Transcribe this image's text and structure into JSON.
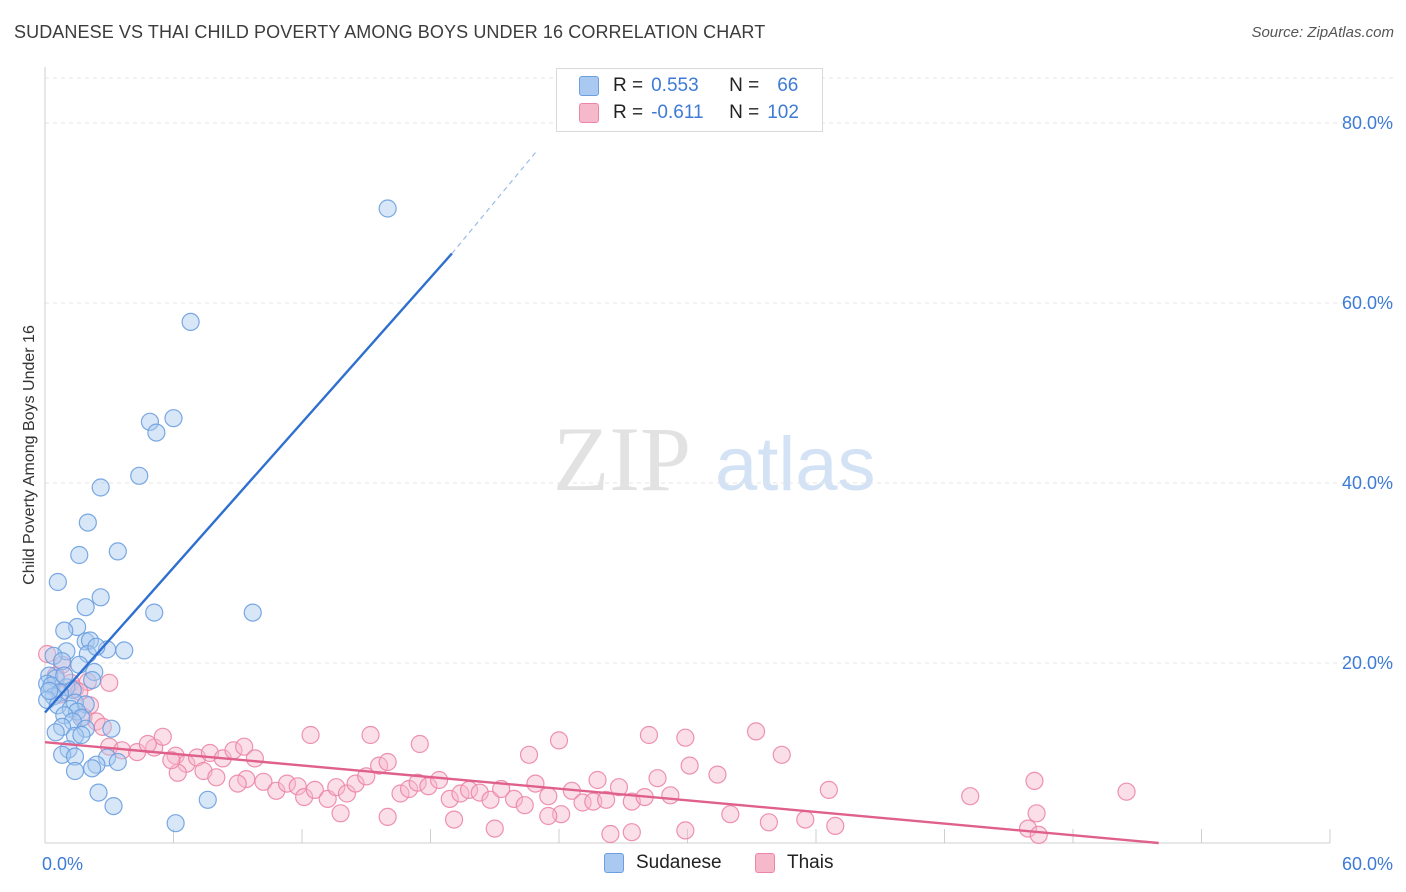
{
  "header": {
    "title": "SUDANESE VS THAI CHILD POVERTY AMONG BOYS UNDER 16 CORRELATION CHART",
    "source": "Source: ZipAtlas.com"
  },
  "watermark": {
    "zip": "ZIP",
    "atlas": "atlas"
  },
  "legend": {
    "rows": [
      {
        "r_label": "R =",
        "r_value": "0.553",
        "n_label": "N =",
        "n_value": "66",
        "color": "#a9c9f0"
      },
      {
        "r_label": "R =",
        "r_value": "-0.611",
        "n_label": "N =",
        "n_value": "102",
        "color": "#f6b8cb"
      }
    ]
  },
  "bottom_legend": {
    "sudanese": "Sudanese",
    "thais": "Thais"
  },
  "chart_data": {
    "type": "scatter",
    "ylabel": "Child Poverty Among Boys Under 16",
    "xlabel": "",
    "xlim": [
      0,
      60
    ],
    "ylim": [
      0,
      85
    ],
    "x_tick_labels": [
      "0.0%",
      "60.0%"
    ],
    "y_tick_labels": [
      "20.0%",
      "40.0%",
      "60.0%",
      "80.0%"
    ],
    "y_ticks": [
      20,
      40,
      60,
      80
    ],
    "grid": true,
    "colors": {
      "sudanese": "#6b9fe0",
      "sudanese_fill": "#a9c9f0",
      "sudanese_line": "#2e6fd0",
      "thais": "#ec86a6",
      "thais_fill": "#f6b8cb",
      "thais_line": "#e0608c",
      "axis_text": "#3d7bd6"
    },
    "series": [
      {
        "name": "Sudanese",
        "trend": {
          "x": [
            0.0,
            19.0
          ],
          "y": [
            14.5,
            65.5
          ],
          "dashed_to": [
            23.0,
            77.0
          ]
        },
        "points": [
          [
            16.0,
            70.5
          ],
          [
            6.8,
            57.9
          ],
          [
            6.0,
            47.2
          ],
          [
            4.9,
            46.8
          ],
          [
            5.2,
            45.6
          ],
          [
            4.4,
            40.8
          ],
          [
            2.6,
            39.5
          ],
          [
            2.0,
            35.6
          ],
          [
            3.4,
            32.4
          ],
          [
            1.6,
            32.0
          ],
          [
            0.6,
            29.0
          ],
          [
            2.6,
            27.3
          ],
          [
            5.1,
            25.6
          ],
          [
            9.7,
            25.6
          ],
          [
            1.9,
            26.2
          ],
          [
            1.5,
            24.0
          ],
          [
            0.9,
            23.6
          ],
          [
            1.9,
            22.4
          ],
          [
            2.1,
            22.5
          ],
          [
            1.0,
            21.3
          ],
          [
            2.0,
            21.0
          ],
          [
            2.9,
            21.5
          ],
          [
            3.7,
            21.4
          ],
          [
            0.4,
            20.8
          ],
          [
            0.8,
            20.2
          ],
          [
            1.6,
            19.8
          ],
          [
            2.3,
            19.0
          ],
          [
            0.2,
            18.6
          ],
          [
            0.5,
            18.3
          ],
          [
            2.2,
            18.1
          ],
          [
            0.1,
            17.7
          ],
          [
            0.3,
            17.5
          ],
          [
            1.0,
            17.3
          ],
          [
            1.3,
            17.0
          ],
          [
            0.7,
            16.7
          ],
          [
            0.4,
            16.3
          ],
          [
            0.1,
            15.9
          ],
          [
            1.4,
            15.6
          ],
          [
            0.6,
            15.3
          ],
          [
            1.9,
            15.4
          ],
          [
            1.2,
            14.9
          ],
          [
            1.5,
            14.6
          ],
          [
            0.9,
            14.2
          ],
          [
            1.7,
            13.9
          ],
          [
            1.3,
            13.5
          ],
          [
            0.8,
            12.9
          ],
          [
            1.9,
            12.7
          ],
          [
            3.1,
            12.7
          ],
          [
            0.5,
            12.3
          ],
          [
            1.4,
            11.9
          ],
          [
            1.7,
            12.0
          ],
          [
            1.1,
            10.4
          ],
          [
            0.8,
            9.8
          ],
          [
            1.4,
            9.6
          ],
          [
            2.9,
            9.5
          ],
          [
            3.4,
            9.0
          ],
          [
            2.4,
            8.7
          ],
          [
            2.2,
            8.3
          ],
          [
            1.4,
            8.0
          ],
          [
            2.5,
            5.6
          ],
          [
            3.2,
            4.1
          ],
          [
            7.6,
            4.8
          ],
          [
            6.1,
            2.2
          ],
          [
            0.2,
            16.9
          ],
          [
            0.9,
            18.6
          ],
          [
            2.4,
            21.8
          ]
        ]
      },
      {
        "name": "Thais",
        "trend": {
          "x": [
            0.0,
            52.0
          ],
          "y": [
            11.2,
            0.0
          ]
        },
        "points": [
          [
            0.1,
            21.0
          ],
          [
            0.8,
            19.8
          ],
          [
            0.5,
            18.6
          ],
          [
            1.2,
            17.8
          ],
          [
            1.4,
            17.1
          ],
          [
            2.0,
            17.9
          ],
          [
            3.0,
            17.8
          ],
          [
            0.7,
            16.5
          ],
          [
            1.6,
            16.8
          ],
          [
            2.1,
            15.3
          ],
          [
            1.8,
            14.0
          ],
          [
            2.4,
            13.5
          ],
          [
            2.7,
            12.9
          ],
          [
            3.0,
            10.7
          ],
          [
            3.6,
            10.3
          ],
          [
            4.3,
            10.1
          ],
          [
            5.1,
            10.6
          ],
          [
            4.8,
            11.0
          ],
          [
            5.5,
            11.8
          ],
          [
            6.1,
            9.7
          ],
          [
            6.6,
            8.8
          ],
          [
            7.1,
            9.5
          ],
          [
            7.7,
            10.0
          ],
          [
            8.3,
            9.4
          ],
          [
            8.8,
            10.3
          ],
          [
            9.3,
            10.7
          ],
          [
            9.8,
            9.4
          ],
          [
            7.4,
            8.0
          ],
          [
            6.2,
            7.8
          ],
          [
            5.9,
            9.2
          ],
          [
            8.0,
            7.3
          ],
          [
            9.4,
            7.1
          ],
          [
            10.2,
            6.8
          ],
          [
            10.8,
            5.8
          ],
          [
            11.3,
            6.6
          ],
          [
            11.8,
            6.3
          ],
          [
            12.1,
            5.1
          ],
          [
            12.6,
            5.9
          ],
          [
            13.2,
            4.9
          ],
          [
            13.6,
            6.2
          ],
          [
            14.1,
            5.5
          ],
          [
            14.5,
            6.6
          ],
          [
            15.0,
            7.4
          ],
          [
            15.6,
            8.6
          ],
          [
            16.0,
            9.0
          ],
          [
            16.6,
            5.5
          ],
          [
            17.0,
            6.0
          ],
          [
            17.4,
            6.7
          ],
          [
            17.9,
            6.3
          ],
          [
            18.4,
            7.0
          ],
          [
            18.9,
            4.9
          ],
          [
            19.4,
            5.5
          ],
          [
            19.8,
            5.9
          ],
          [
            20.3,
            5.6
          ],
          [
            20.8,
            4.8
          ],
          [
            21.3,
            6.0
          ],
          [
            21.9,
            4.9
          ],
          [
            22.4,
            4.2
          ],
          [
            22.9,
            6.6
          ],
          [
            23.5,
            5.2
          ],
          [
            24.1,
            3.2
          ],
          [
            24.6,
            5.8
          ],
          [
            25.1,
            4.5
          ],
          [
            25.6,
            4.6
          ],
          [
            26.2,
            4.8
          ],
          [
            26.8,
            6.2
          ],
          [
            27.4,
            4.6
          ],
          [
            28.0,
            5.1
          ],
          [
            28.6,
            7.2
          ],
          [
            29.2,
            5.3
          ],
          [
            30.1,
            8.6
          ],
          [
            31.4,
            7.6
          ],
          [
            12.4,
            12.0
          ],
          [
            15.2,
            12.0
          ],
          [
            17.5,
            11.0
          ],
          [
            22.6,
            9.8
          ],
          [
            24.0,
            11.4
          ],
          [
            25.8,
            7.0
          ],
          [
            28.2,
            12.0
          ],
          [
            29.9,
            11.7
          ],
          [
            33.2,
            12.4
          ],
          [
            34.4,
            9.8
          ],
          [
            36.6,
            5.9
          ],
          [
            43.2,
            5.2
          ],
          [
            46.3,
            3.3
          ],
          [
            46.2,
            6.9
          ],
          [
            50.5,
            5.7
          ],
          [
            13.8,
            3.3
          ],
          [
            16.0,
            2.9
          ],
          [
            19.1,
            2.6
          ],
          [
            21.0,
            1.6
          ],
          [
            23.5,
            3.0
          ],
          [
            26.4,
            1.0
          ],
          [
            27.4,
            1.2
          ],
          [
            29.9,
            1.4
          ],
          [
            32.0,
            3.2
          ],
          [
            33.8,
            2.3
          ],
          [
            35.5,
            2.6
          ],
          [
            36.9,
            1.9
          ],
          [
            45.9,
            1.6
          ],
          [
            46.4,
            0.9
          ],
          [
            9.0,
            6.6
          ]
        ]
      }
    ]
  }
}
